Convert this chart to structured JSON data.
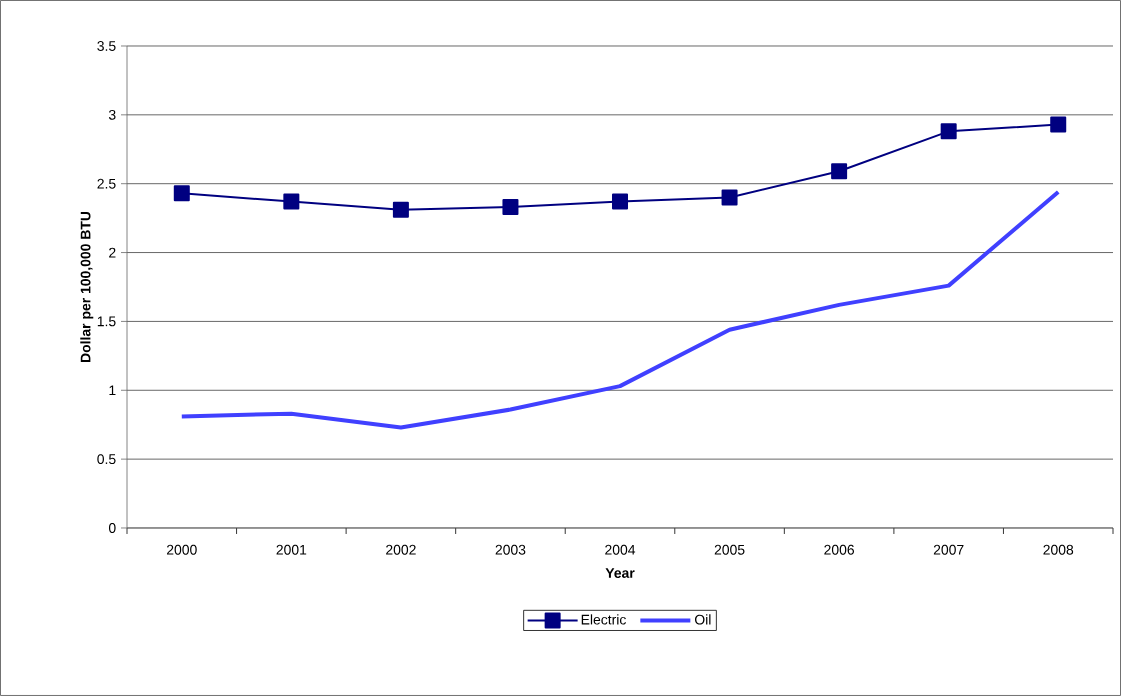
{
  "chart_data": {
    "type": "line",
    "xlabel": "Year",
    "ylabel": "Dollar per 100,000 BTU",
    "categories": [
      "2000",
      "2001",
      "2002",
      "2003",
      "2004",
      "2005",
      "2006",
      "2007",
      "2008"
    ],
    "series": [
      {
        "name": "Electric",
        "color": "#000080",
        "marker": "square",
        "values": [
          2.43,
          2.37,
          2.31,
          2.33,
          2.37,
          2.4,
          2.59,
          2.88,
          2.93
        ]
      },
      {
        "name": "Oil",
        "color": "#4040ff",
        "marker": "none",
        "values": [
          0.81,
          0.83,
          0.73,
          0.86,
          1.03,
          1.44,
          1.62,
          1.76,
          2.44
        ]
      }
    ],
    "ylim": [
      0,
      3.5
    ],
    "yticks": [
      0,
      0.5,
      1,
      1.5,
      2,
      2.5,
      3,
      3.5
    ],
    "grid": "y",
    "legend": "bottom"
  }
}
